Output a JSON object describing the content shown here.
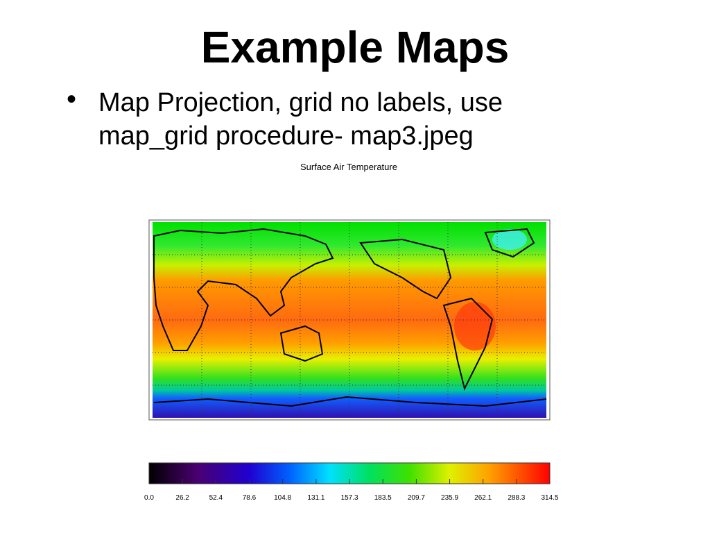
{
  "title": "Example Maps",
  "bullets": [
    "Map Projection, grid no labels, use map_grid procedure- map3.jpeg"
  ],
  "figure": {
    "title": "Surface Air Temperature",
    "colorbar": {
      "ticks": [
        {
          "value": 0,
          "label": "0.0"
        },
        26.2,
        52.4,
        78.6,
        104.8,
        131.1,
        157.3,
        183.5,
        209.7,
        235.9,
        262.1,
        288.3,
        314.5
      ]
    }
  }
}
